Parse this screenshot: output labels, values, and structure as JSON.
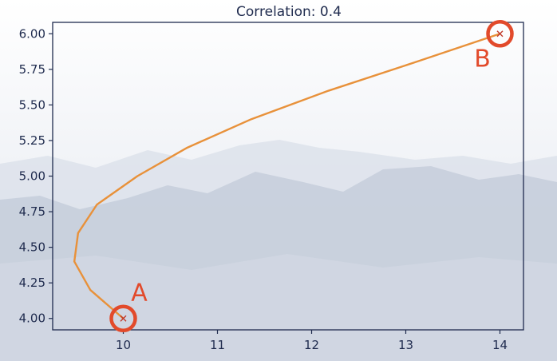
{
  "chart_data": {
    "type": "line",
    "title": "Correlation: 0.4",
    "xlabel": "",
    "ylabel": "",
    "xlim": [
      9.25,
      14.25
    ],
    "ylim": [
      3.92,
      6.08
    ],
    "x_ticks": [
      10,
      11,
      12,
      13,
      14
    ],
    "y_ticks": [
      4.0,
      4.25,
      4.5,
      4.75,
      5.0,
      5.25,
      5.5,
      5.75,
      6.0
    ],
    "y_tick_labels": [
      "4.00",
      "4.25",
      "4.50",
      "4.75",
      "5.00",
      "5.25",
      "5.50",
      "5.75",
      "6.00"
    ],
    "grid": false,
    "series": [
      {
        "color": "#e8913a",
        "points": [
          {
            "x": 10.0,
            "y": 4.0
          },
          {
            "x": 9.65,
            "y": 4.2
          },
          {
            "x": 9.48,
            "y": 4.4
          },
          {
            "x": 9.52,
            "y": 4.6
          },
          {
            "x": 9.72,
            "y": 4.8
          },
          {
            "x": 10.15,
            "y": 5.0
          },
          {
            "x": 10.68,
            "y": 5.2
          },
          {
            "x": 11.36,
            "y": 5.4
          },
          {
            "x": 12.18,
            "y": 5.6
          },
          {
            "x": 13.1,
            "y": 5.8
          },
          {
            "x": 14.0,
            "y": 6.0
          }
        ]
      }
    ],
    "annotations": [
      {
        "label": "A",
        "x": 10.0,
        "y": 4.0,
        "color": "#e24a2b"
      },
      {
        "label": "B",
        "x": 14.0,
        "y": 6.0,
        "color": "#e24a2b"
      }
    ]
  },
  "colors": {
    "axis": "#1f2b4e",
    "line": "#e8913a",
    "highlight": "#e24a2b",
    "sky": "#f4f6f9",
    "mountains_far": "#d7dde8",
    "mountains_near": "#bec7d6"
  }
}
